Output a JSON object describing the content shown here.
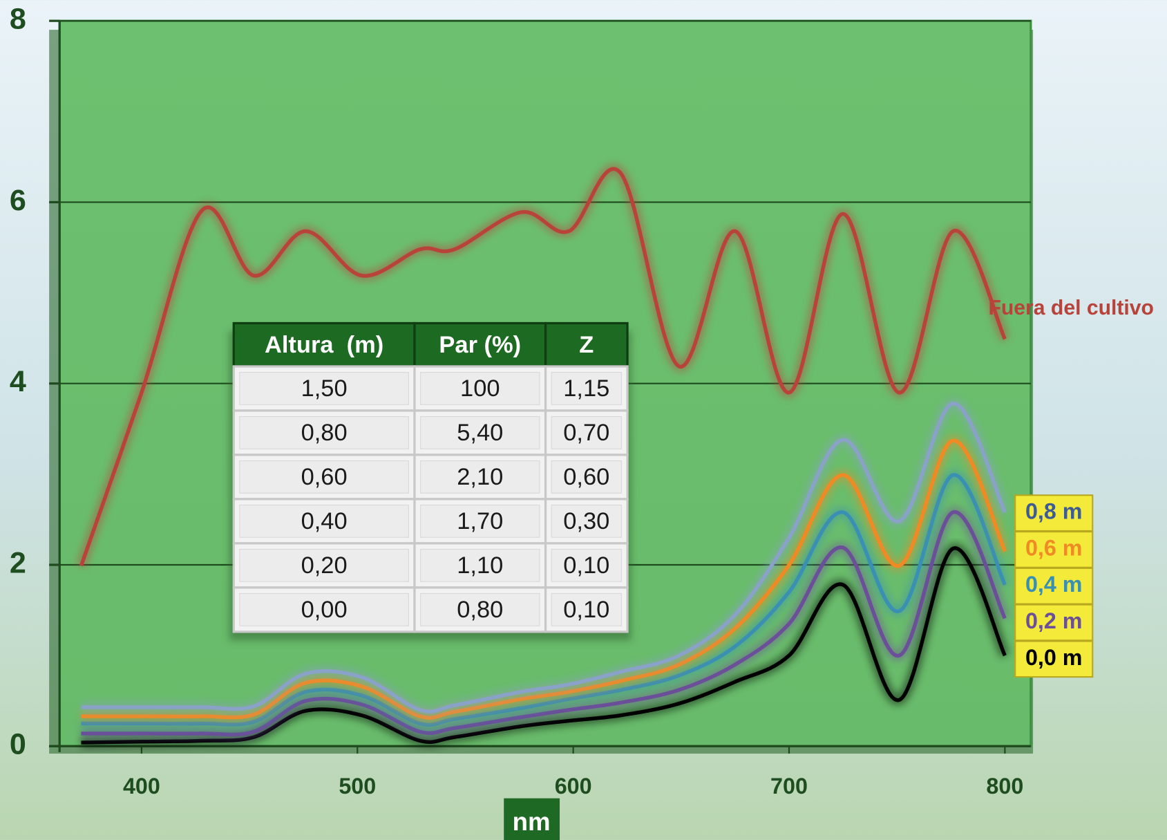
{
  "chart_data": {
    "type": "line",
    "x_label": "nm",
    "x": [
      372,
      400,
      428,
      452,
      476,
      502,
      529,
      545,
      576,
      598,
      622,
      649,
      675,
      700,
      725,
      751,
      776,
      800
    ],
    "xlim": [
      362,
      812
    ],
    "xticks": [
      400,
      500,
      600,
      700,
      800
    ],
    "ylim": [
      0,
      8
    ],
    "yticks": [
      0,
      2,
      4,
      6,
      8
    ],
    "grid": true,
    "series": [
      {
        "name": "Fuera del cultivo",
        "color": "#b8433a",
        "values": [
          1.99,
          3.9,
          5.91,
          5.19,
          5.68,
          5.19,
          5.48,
          5.48,
          5.89,
          5.68,
          6.32,
          4.19,
          5.68,
          3.9,
          5.87,
          3.9,
          5.68,
          4.49
        ]
      },
      {
        "name": "0,8 m",
        "color": "#8aa2c8",
        "values": [
          0.43,
          0.43,
          0.43,
          0.44,
          0.8,
          0.76,
          0.4,
          0.45,
          0.6,
          0.68,
          0.82,
          1.0,
          1.45,
          2.3,
          3.38,
          2.48,
          3.78,
          2.58
        ]
      },
      {
        "name": "0,6 m",
        "color": "#f08a24",
        "values": [
          0.33,
          0.33,
          0.33,
          0.35,
          0.7,
          0.66,
          0.33,
          0.38,
          0.52,
          0.6,
          0.72,
          0.9,
          1.3,
          2.0,
          2.99,
          1.99,
          3.37,
          2.15
        ]
      },
      {
        "name": "0,4 m",
        "color": "#3a90b2",
        "values": [
          0.25,
          0.25,
          0.25,
          0.27,
          0.6,
          0.56,
          0.25,
          0.3,
          0.42,
          0.52,
          0.62,
          0.78,
          1.1,
          1.7,
          2.58,
          1.49,
          2.99,
          1.78
        ]
      },
      {
        "name": "0,2 m",
        "color": "#6b4f98",
        "values": [
          0.14,
          0.14,
          0.14,
          0.16,
          0.5,
          0.46,
          0.16,
          0.2,
          0.32,
          0.4,
          0.48,
          0.62,
          0.9,
          1.35,
          2.19,
          1.0,
          2.58,
          1.41
        ]
      },
      {
        "name": "0,0 m",
        "color": "#000000",
        "values": [
          0.04,
          0.05,
          0.06,
          0.1,
          0.39,
          0.34,
          0.06,
          0.1,
          0.22,
          0.28,
          0.34,
          0.47,
          0.71,
          1.0,
          1.78,
          0.51,
          2.18,
          1.0
        ]
      }
    ]
  },
  "table": {
    "header": [
      "Altura  (m)",
      "Par (%)",
      "Z"
    ],
    "rows": [
      [
        "1,50",
        "100",
        "1,15"
      ],
      [
        "0,80",
        "5,40",
        "0,70"
      ],
      [
        "0,60",
        "2,10",
        "0,60"
      ],
      [
        "0,40",
        "1,70",
        "0,30"
      ],
      [
        "0,20",
        "1,10",
        "0,10"
      ],
      [
        "0,00",
        "0,80",
        "0,10"
      ]
    ]
  }
}
